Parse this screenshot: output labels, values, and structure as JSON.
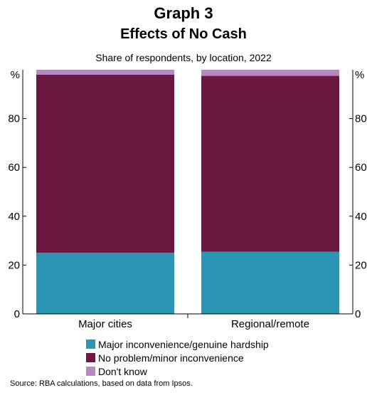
{
  "header": {
    "graph_label": "Graph 3",
    "title": "Effects of No Cash",
    "subtitle": "Share of respondents, by location, 2022"
  },
  "footer": {
    "source": "Source:   RBA calculations, based on data from Ipsos."
  },
  "chart_data": {
    "type": "bar",
    "stacked": true,
    "categories": [
      "Major cities",
      "Regional/remote"
    ],
    "series": [
      {
        "name": "Major inconvenience/genuine hardship",
        "values": [
          25,
          25.5
        ],
        "color": "#2a96b3"
      },
      {
        "name": "No problem/minor inconvenience",
        "values": [
          73,
          72
        ],
        "color": "#6c1942"
      },
      {
        "name": "Don't know",
        "values": [
          2,
          2.5
        ],
        "color": "#b58bc2"
      }
    ],
    "ylim": [
      0,
      100
    ],
    "yticks": [
      0,
      20,
      40,
      60,
      80
    ],
    "y_unit_label": "%",
    "legend_position": "bottom",
    "grid": false
  }
}
